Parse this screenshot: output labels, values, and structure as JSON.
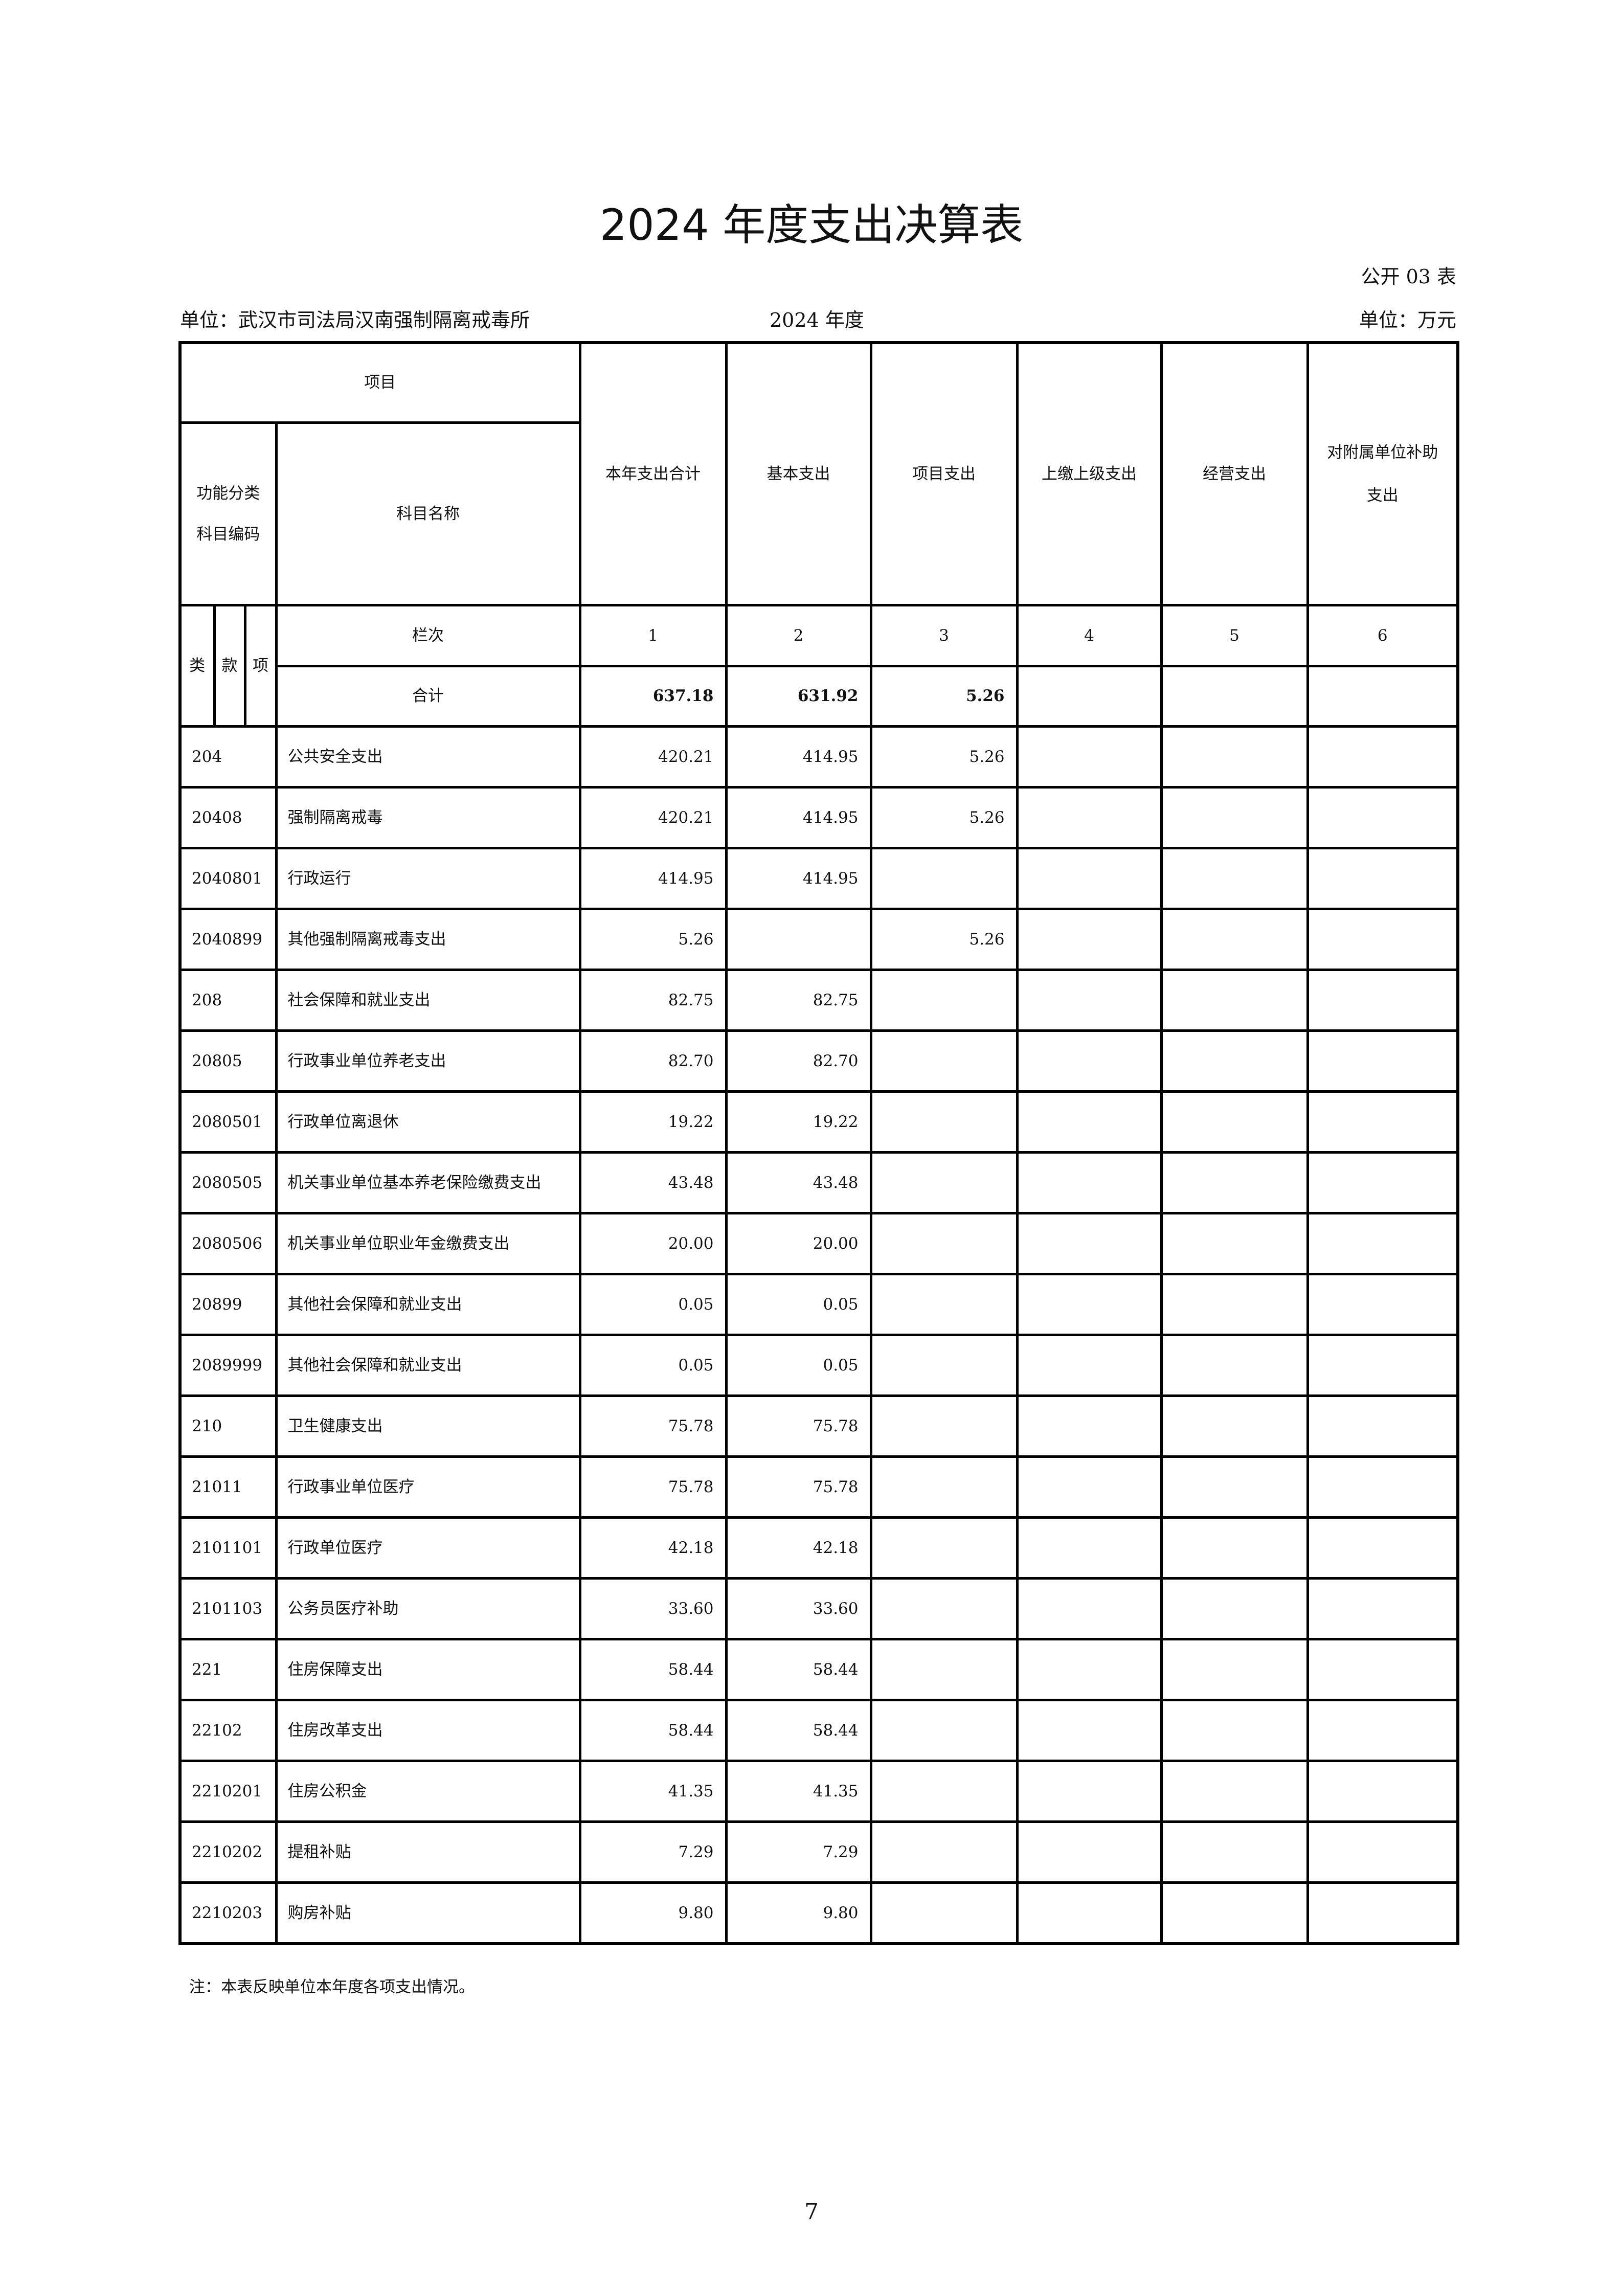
{
  "title": "2024 年度支出决算表",
  "form_no": "公开 03 表",
  "unit": "单位：武汉市司法局汉南强制隔离戒毒所",
  "year": "2024 年度",
  "money_unit": "单位：万元",
  "header": {
    "item": "项目",
    "code": "功能分类科目编码",
    "name": "科目名称",
    "cols": [
      "本年支出合计",
      "基本支出",
      "项目支出",
      "上缴上级支出",
      "经营支出",
      "对附属单位补助支出"
    ],
    "lei": "类",
    "kuan": "款",
    "xiang": "项",
    "lanci": "栏次",
    "col_nums": [
      "1",
      "2",
      "3",
      "4",
      "5",
      "6"
    ]
  },
  "total": {
    "label": "合计",
    "values": [
      "637.18",
      "631.92",
      "5.26",
      "",
      "",
      ""
    ]
  },
  "rows": [
    {
      "code": "204",
      "name": "公共安全支出",
      "values": [
        "420.21",
        "414.95",
        "5.26",
        "",
        "",
        ""
      ]
    },
    {
      "code": "20408",
      "name": "强制隔离戒毒",
      "values": [
        "420.21",
        "414.95",
        "5.26",
        "",
        "",
        ""
      ]
    },
    {
      "code": "2040801",
      "name": "行政运行",
      "values": [
        "414.95",
        "414.95",
        "",
        "",
        "",
        ""
      ]
    },
    {
      "code": "2040899",
      "name": "其他强制隔离戒毒支出",
      "values": [
        "5.26",
        "",
        "5.26",
        "",
        "",
        ""
      ]
    },
    {
      "code": "208",
      "name": "社会保障和就业支出",
      "values": [
        "82.75",
        "82.75",
        "",
        "",
        "",
        ""
      ]
    },
    {
      "code": "20805",
      "name": "行政事业单位养老支出",
      "values": [
        "82.70",
        "82.70",
        "",
        "",
        "",
        ""
      ]
    },
    {
      "code": "2080501",
      "name": "行政单位离退休",
      "values": [
        "19.22",
        "19.22",
        "",
        "",
        "",
        ""
      ]
    },
    {
      "code": "2080505",
      "name": "机关事业单位基本养老保险缴费支出",
      "values": [
        "43.48",
        "43.48",
        "",
        "",
        "",
        ""
      ]
    },
    {
      "code": "2080506",
      "name": "机关事业单位职业年金缴费支出",
      "values": [
        "20.00",
        "20.00",
        "",
        "",
        "",
        ""
      ]
    },
    {
      "code": "20899",
      "name": "其他社会保障和就业支出",
      "values": [
        "0.05",
        "0.05",
        "",
        "",
        "",
        ""
      ]
    },
    {
      "code": "2089999",
      "name": "其他社会保障和就业支出",
      "values": [
        "0.05",
        "0.05",
        "",
        "",
        "",
        ""
      ]
    },
    {
      "code": "210",
      "name": "卫生健康支出",
      "values": [
        "75.78",
        "75.78",
        "",
        "",
        "",
        ""
      ]
    },
    {
      "code": "21011",
      "name": "行政事业单位医疗",
      "values": [
        "75.78",
        "75.78",
        "",
        "",
        "",
        ""
      ]
    },
    {
      "code": "2101101",
      "name": "行政单位医疗",
      "values": [
        "42.18",
        "42.18",
        "",
        "",
        "",
        ""
      ]
    },
    {
      "code": "2101103",
      "name": "公务员医疗补助",
      "values": [
        "33.60",
        "33.60",
        "",
        "",
        "",
        ""
      ]
    },
    {
      "code": "221",
      "name": "住房保障支出",
      "values": [
        "58.44",
        "58.44",
        "",
        "",
        "",
        ""
      ]
    },
    {
      "code": "22102",
      "name": "住房改革支出",
      "values": [
        "58.44",
        "58.44",
        "",
        "",
        "",
        ""
      ]
    },
    {
      "code": "2210201",
      "name": "住房公积金",
      "values": [
        "41.35",
        "41.35",
        "",
        "",
        "",
        ""
      ]
    },
    {
      "code": "2210202",
      "name": "提租补贴",
      "values": [
        "7.29",
        "7.29",
        "",
        "",
        "",
        ""
      ]
    },
    {
      "code": "2210203",
      "name": "购房补贴",
      "values": [
        "9.80",
        "9.80",
        "",
        "",
        "",
        ""
      ]
    }
  ],
  "note": "注：本表反映单位本年度各项支出情况。",
  "page_number": "7"
}
